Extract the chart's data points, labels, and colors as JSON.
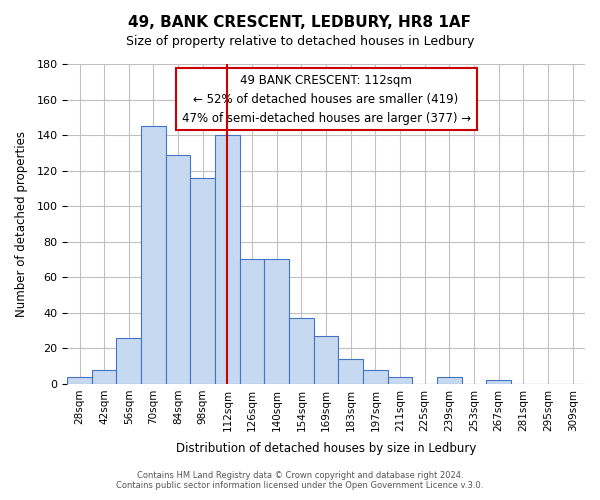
{
  "title": "49, BANK CRESCENT, LEDBURY, HR8 1AF",
  "subtitle": "Size of property relative to detached houses in Ledbury",
  "xlabel": "Distribution of detached houses by size in Ledbury",
  "ylabel": "Number of detached properties",
  "footer_line1": "Contains HM Land Registry data © Crown copyright and database right 2024.",
  "footer_line2": "Contains public sector information licensed under the Open Government Licence v.3.0.",
  "bar_labels": [
    "28sqm",
    "42sqm",
    "56sqm",
    "70sqm",
    "84sqm",
    "98sqm",
    "112sqm",
    "126sqm",
    "140sqm",
    "154sqm",
    "169sqm",
    "183sqm",
    "197sqm",
    "211sqm",
    "225sqm",
    "239sqm",
    "253sqm",
    "267sqm",
    "281sqm",
    "295sqm",
    "309sqm"
  ],
  "bar_values": [
    4,
    8,
    26,
    145,
    129,
    116,
    140,
    70,
    70,
    37,
    27,
    14,
    8,
    4,
    0,
    4,
    0,
    2,
    0,
    0,
    0
  ],
  "bar_color": "#c6d9f1",
  "bar_edge_color": "#4472c4",
  "marker_bar_index": 6,
  "marker_line_color": "#cc0000",
  "annotation_title": "49 BANK CRESCENT: 112sqm",
  "annotation_line1": "← 52% of detached houses are smaller (419)",
  "annotation_line2": "47% of semi-detached houses are larger (377) →",
  "annotation_box_edge_color": "#cc0000",
  "annotation_box_bg": "#ffffff",
  "ylim": [
    0,
    180
  ],
  "yticks": [
    0,
    20,
    40,
    60,
    80,
    100,
    120,
    140,
    160,
    180
  ],
  "background_color": "#ffffff",
  "grid_color": "#c0c0c0"
}
